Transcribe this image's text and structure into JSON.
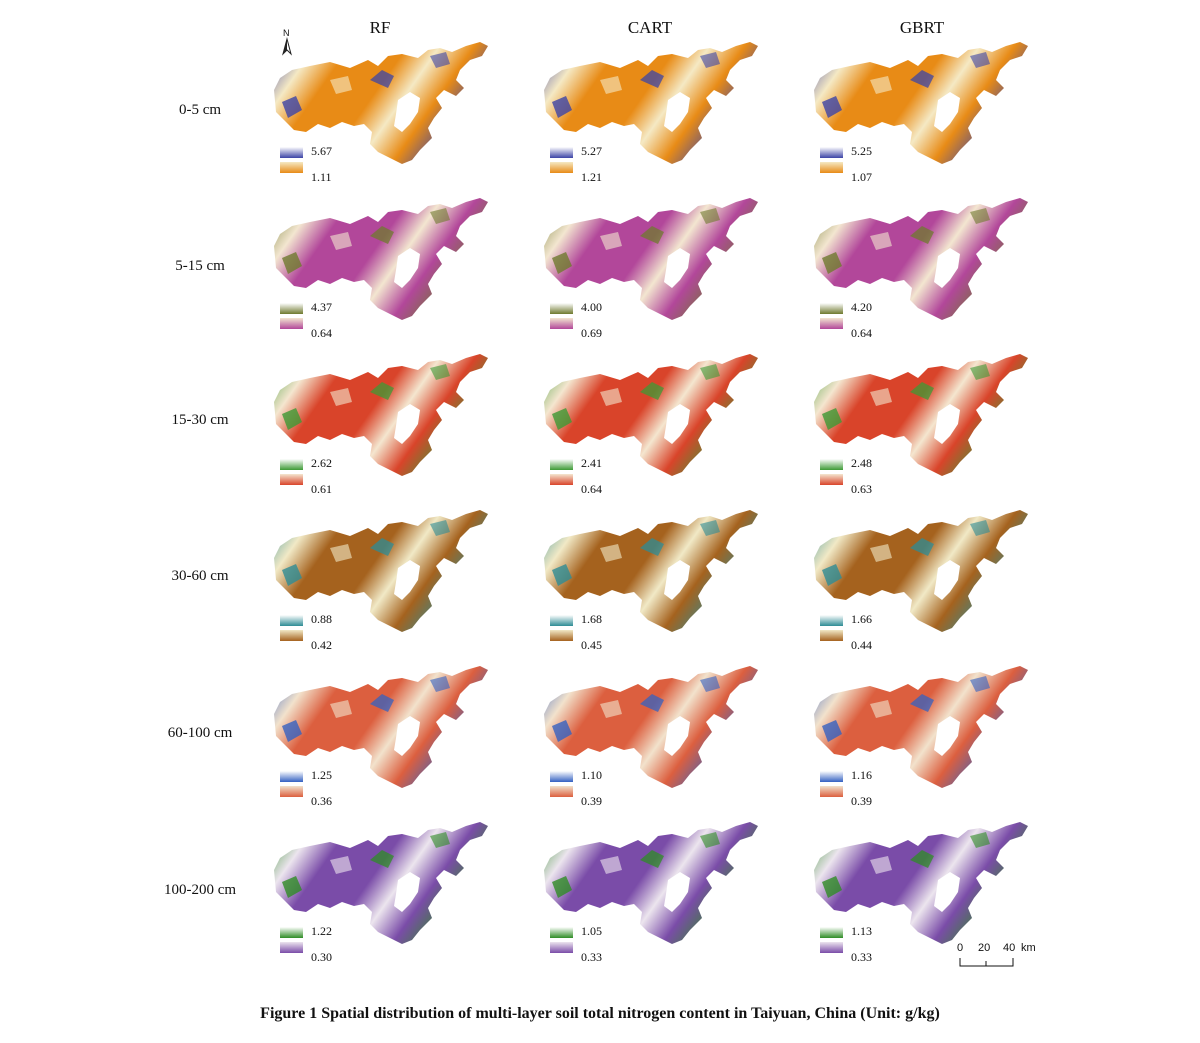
{
  "columns": [
    "RF",
    "CART",
    "GBRT"
  ],
  "north_label": "N",
  "rows": [
    {
      "depth": "0-5 cm",
      "colors": {
        "high": "#3c44a6",
        "mid": "#f5e9c4",
        "low": "#e88b16"
      },
      "legend": [
        {
          "max": "5.67",
          "min": "1.11"
        },
        {
          "max": "5.27",
          "min": "1.21"
        },
        {
          "max": "5.25",
          "min": "1.07"
        }
      ]
    },
    {
      "depth": "5-15 cm",
      "colors": {
        "high": "#6f7a2e",
        "mid": "#f3e6d0",
        "low": "#b2479a"
      },
      "legend": [
        {
          "max": "4.37",
          "min": "0.64"
        },
        {
          "max": "4.00",
          "min": "0.69"
        },
        {
          "max": "4.20",
          "min": "0.64"
        }
      ]
    },
    {
      "depth": "15-30 cm",
      "colors": {
        "high": "#3d9a35",
        "mid": "#f4e6cf",
        "low": "#d9442a"
      },
      "legend": [
        {
          "max": "2.62",
          "min": "0.61"
        },
        {
          "max": "2.41",
          "min": "0.64"
        },
        {
          "max": "2.48",
          "min": "0.63"
        }
      ]
    },
    {
      "depth": "30-60 cm",
      "colors": {
        "high": "#2e8c95",
        "mid": "#f1e9c6",
        "low": "#a5621e"
      },
      "legend": [
        {
          "max": "0.88",
          "min": "0.42"
        },
        {
          "max": "1.68",
          "min": "0.45"
        },
        {
          "max": "1.66",
          "min": "0.44"
        }
      ]
    },
    {
      "depth": "60-100 cm",
      "colors": {
        "high": "#3461c2",
        "mid": "#f2e2cc",
        "low": "#dc5f3f"
      },
      "legend": [
        {
          "max": "1.25",
          "min": "0.36"
        },
        {
          "max": "1.10",
          "min": "0.39"
        },
        {
          "max": "1.16",
          "min": "0.39"
        }
      ]
    },
    {
      "depth": "100-200 cm",
      "colors": {
        "high": "#2f8c25",
        "mid": "#ece5ee",
        "low": "#7a4ca8"
      },
      "legend": [
        {
          "max": "1.22",
          "min": "0.30"
        },
        {
          "max": "1.05",
          "min": "0.33"
        },
        {
          "max": "1.13",
          "min": "0.33"
        }
      ]
    }
  ],
  "scale_bar": {
    "ticks": [
      "0",
      "20",
      "40"
    ],
    "unit": "km"
  },
  "caption": "Figure 1  Spatial distribution of multi-layer soil total nitrogen content in Taiyuan, China (Unit: g/kg)"
}
